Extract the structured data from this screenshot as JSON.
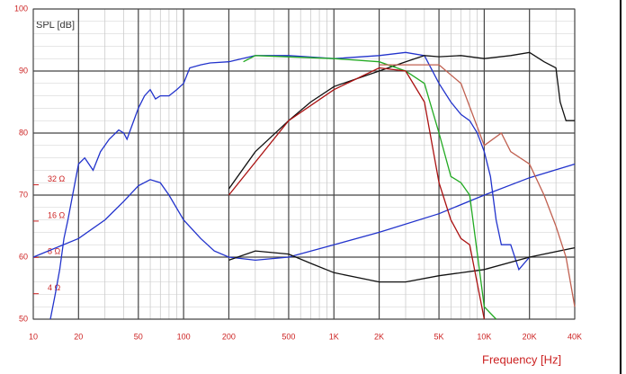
{
  "chart_data": {
    "type": "line",
    "title": "SPL [dB]",
    "x_label": "Frequency [Hz]",
    "x_log": true,
    "grid": true,
    "xlim": [
      10,
      40000
    ],
    "xticks": [
      10,
      20,
      50,
      100,
      200,
      500,
      {
        "value": 1000,
        "label": "1K"
      },
      {
        "value": 2000,
        "label": "2K"
      },
      {
        "value": 5000,
        "label": "5K"
      },
      {
        "value": 10000,
        "label": "10K"
      },
      {
        "value": 20000,
        "label": "20K"
      },
      {
        "value": 40000,
        "label": "40K"
      }
    ],
    "ylim": [
      50,
      100
    ],
    "yticks": [
      50,
      60,
      70,
      80,
      90,
      100
    ],
    "y2_log": true,
    "y2lim": [
      2.46,
      918
    ],
    "y2ticks": [
      {
        "value": 4,
        "label": "4 Ω"
      },
      {
        "value": 8,
        "label": "8 Ω"
      },
      {
        "value": 16,
        "label": "16 Ω"
      },
      {
        "value": 32,
        "label": "32 Ω"
      }
    ],
    "series": [
      {
        "color": "#2233cc",
        "x": [
          13,
          14,
          15,
          16,
          17,
          20,
          22,
          25,
          28,
          32,
          37,
          40,
          42,
          45,
          50,
          55,
          60,
          65,
          70,
          80,
          90,
          100,
          110,
          130,
          150,
          200,
          300,
          500,
          1000,
          2000,
          3000,
          4000,
          5000,
          6000,
          7000,
          8000,
          9000,
          10000,
          11000,
          12000,
          13000,
          15000,
          17000,
          20000
        ],
        "values": [
          50,
          54,
          58,
          63,
          66,
          75,
          76,
          74,
          77,
          79,
          80.5,
          80,
          79,
          81,
          84,
          86,
          87,
          85.5,
          86,
          86,
          87,
          88,
          90.5,
          91,
          91.3,
          91.5,
          92.5,
          92.5,
          92,
          92.5,
          93,
          92.5,
          88,
          85,
          83,
          82,
          80,
          77,
          73,
          66,
          62,
          62,
          58,
          60
        ]
      },
      {
        "color": "#2233cc",
        "x": [
          10,
          20,
          30,
          40,
          50,
          60,
          70,
          80,
          100,
          130,
          160,
          200,
          300,
          500,
          1000,
          2000,
          5000,
          10000,
          20000,
          40000
        ],
        "values": [
          60,
          63,
          66,
          69,
          71.5,
          72.5,
          72,
          70,
          66,
          63,
          61,
          60,
          59.5,
          60,
          62,
          64,
          67,
          70,
          72.8,
          75
        ]
      },
      {
        "color": "#111111",
        "x": [
          200,
          300,
          500,
          700,
          1000,
          2000,
          3000,
          4000,
          5000,
          7000,
          10000,
          15000,
          20000,
          25000,
          30000,
          32000,
          35000,
          40000
        ],
        "values": [
          71,
          77,
          82,
          85,
          87.5,
          90,
          91.5,
          92.5,
          92.3,
          92.5,
          92,
          92.5,
          93,
          91.5,
          90.5,
          85,
          82,
          82
        ]
      },
      {
        "color": "#111111",
        "x": [
          200,
          300,
          500,
          700,
          1000,
          2000,
          3000,
          5000,
          10000,
          20000,
          40000
        ],
        "values": [
          59.5,
          61,
          60.5,
          59,
          57.5,
          56,
          56,
          57,
          58,
          60,
          61.5
        ]
      },
      {
        "color": "#22aa22",
        "x": [
          250,
          300,
          1000,
          2000,
          3000,
          4000,
          5000,
          6000,
          7000,
          8000,
          10000,
          12000
        ],
        "values": [
          91.5,
          92.5,
          92,
          91.5,
          90,
          88,
          80,
          73,
          72,
          70,
          52,
          50
        ]
      },
      {
        "color": "#aa1111",
        "x": [
          200,
          500,
          1000,
          2000,
          3000,
          4000,
          5000,
          6000,
          7000,
          8000,
          10000
        ],
        "values": [
          70,
          82,
          87,
          90.5,
          90,
          85,
          72,
          66,
          63,
          62,
          50
        ]
      },
      {
        "color": "#c06050",
        "x": [
          2000,
          5000,
          7000,
          10000,
          13000,
          15000,
          20000,
          25000,
          30000,
          35000,
          40000
        ],
        "values": [
          91,
          91,
          88,
          78,
          80,
          77,
          75,
          70,
          65,
          60,
          52
        ]
      }
    ]
  }
}
